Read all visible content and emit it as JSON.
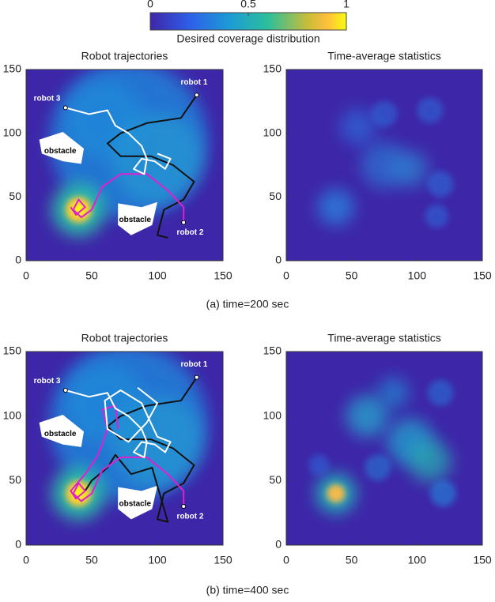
{
  "colorbar": {
    "label": "Desired coverage distribution",
    "lim": [
      0,
      1
    ],
    "ticks": [
      0,
      0.5,
      1
    ]
  },
  "chart_data": [
    {
      "type": "heatmap",
      "title": "Robot trajectories",
      "xlim": [
        0,
        150
      ],
      "ylim": [
        0,
        150
      ],
      "xticks": [
        0,
        50,
        100,
        150
      ],
      "yticks": [
        0,
        50,
        100,
        150
      ],
      "annotations": [
        "robot 1",
        "robot 2",
        "robot 3",
        "obstacle",
        "obstacle"
      ]
    },
    {
      "type": "heatmap",
      "title": "Time-average statistics",
      "xlim": [
        0,
        150
      ],
      "ylim": [
        0,
        150
      ],
      "xticks": [
        0,
        50,
        100,
        150
      ],
      "yticks": [
        0,
        50,
        100,
        150
      ]
    },
    {
      "type": "heatmap",
      "title": "Robot trajectories",
      "xlim": [
        0,
        150
      ],
      "ylim": [
        0,
        150
      ],
      "xticks": [
        0,
        50,
        100,
        150
      ],
      "yticks": [
        0,
        50,
        100,
        150
      ],
      "annotations": [
        "robot 1",
        "robot 2",
        "robot 3",
        "obstacle",
        "obstacle"
      ]
    },
    {
      "type": "heatmap",
      "title": "Time-average statistics",
      "xlim": [
        0,
        150
      ],
      "ylim": [
        0,
        150
      ],
      "xticks": [
        0,
        50,
        100,
        150
      ],
      "yticks": [
        0,
        50,
        100,
        150
      ]
    }
  ],
  "captions": [
    "(a) time=200 sec",
    "(b) time=400 sec"
  ]
}
